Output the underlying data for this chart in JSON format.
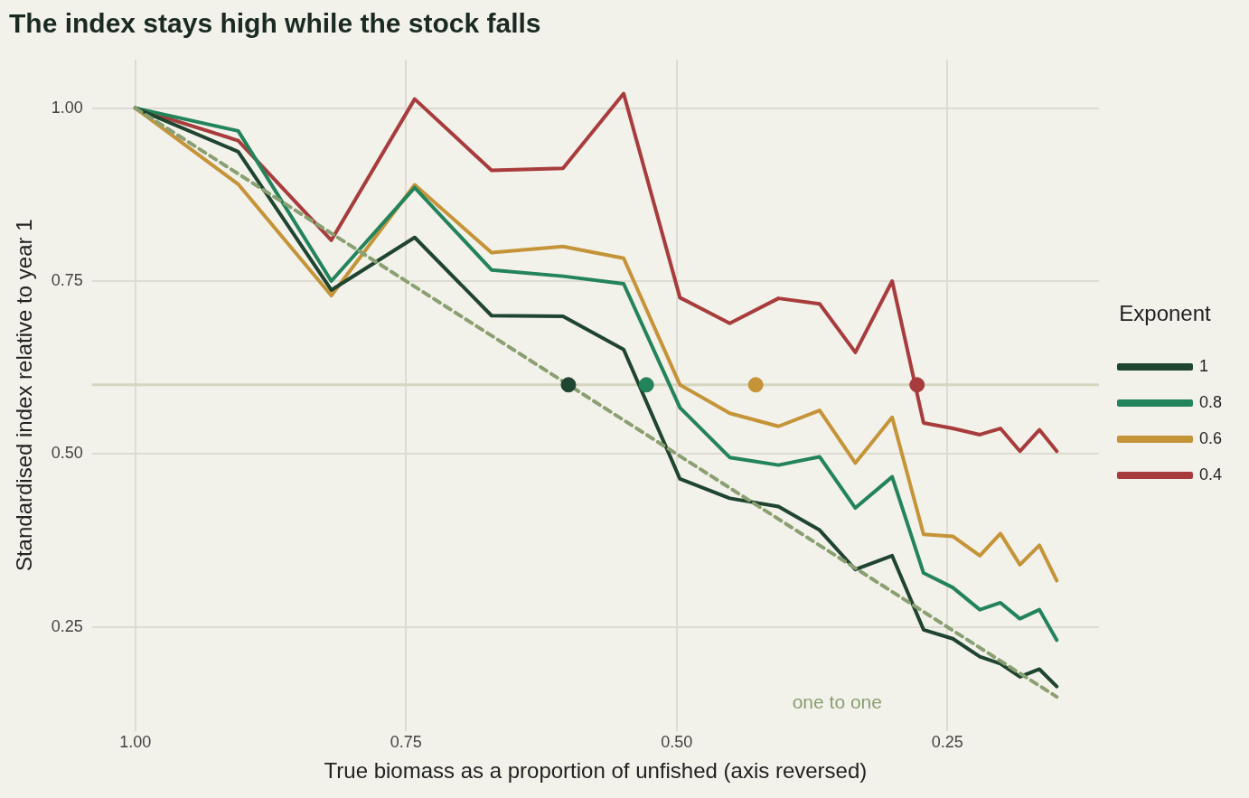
{
  "chart_data": {
    "type": "line",
    "title": "The index stays high while the stock falls",
    "xlabel": "True biomass as a proportion of unfished (axis reversed)",
    "ylabel": "Standardised index relative to year 1",
    "legend_title": "Exponent",
    "legend": "right",
    "grid": true,
    "marker": "none",
    "x": [
      1.0,
      0.905,
      0.819,
      0.742,
      0.671,
      0.605,
      0.549,
      0.497,
      0.451,
      0.406,
      0.368,
      0.335,
      0.301,
      0.272,
      0.245,
      0.22,
      0.201,
      0.183,
      0.165,
      0.149
    ],
    "xlim": [
      1.04,
      0.11
    ],
    "xticks": [
      {
        "value": 1,
        "label": "1.00"
      },
      {
        "value": 0.75,
        "label": "0.75"
      },
      {
        "value": 0.5,
        "label": "0.50"
      },
      {
        "value": 0.25,
        "label": "0.25"
      }
    ],
    "ylim": [
      0.1,
      1.07
    ],
    "yticks": [
      {
        "value": 0.25,
        "label": "0.25"
      },
      {
        "value": 0.5,
        "label": "0.50"
      },
      {
        "value": 0.75,
        "label": "0.75"
      },
      {
        "value": 1,
        "label": "1.00"
      }
    ],
    "ref_lines": [
      {
        "axis": "y",
        "value": 0.6,
        "color": "#d4d6bf"
      }
    ],
    "annotations": [
      "one to one"
    ],
    "series": [
      {
        "type": "line",
        "line_style": "dashed",
        "color": "#8a9f72",
        "x": [
          1.0,
          0.149
        ],
        "values": [
          1.0,
          0.149
        ]
      },
      {
        "name": "1",
        "color": "#1f4430",
        "values": [
          1.0,
          0.937,
          0.737,
          0.813,
          0.7,
          0.699,
          0.651,
          0.464,
          0.436,
          0.424,
          0.39,
          0.333,
          0.353,
          0.246,
          0.233,
          0.207,
          0.197,
          0.178,
          0.189,
          0.164
        ]
      },
      {
        "name": "0.8",
        "color": "#23835a",
        "values": [
          1.0,
          0.967,
          0.75,
          0.885,
          0.766,
          0.757,
          0.746,
          0.567,
          0.495,
          0.484,
          0.496,
          0.422,
          0.467,
          0.328,
          0.307,
          0.275,
          0.285,
          0.262,
          0.275,
          0.231
        ]
      },
      {
        "name": "0.6",
        "color": "#c59438",
        "values": [
          1.0,
          0.89,
          0.729,
          0.889,
          0.791,
          0.8,
          0.783,
          0.6,
          0.559,
          0.54,
          0.563,
          0.487,
          0.553,
          0.384,
          0.381,
          0.353,
          0.385,
          0.34,
          0.368,
          0.317
        ]
      },
      {
        "name": "0.4",
        "color": "#a83c3c",
        "values": [
          1.0,
          0.953,
          0.809,
          1.013,
          0.91,
          0.913,
          1.021,
          0.726,
          0.689,
          0.725,
          0.717,
          0.647,
          0.75,
          0.545,
          0.537,
          0.528,
          0.537,
          0.504,
          0.535,
          0.504
        ]
      },
      {
        "type": "scatter",
        "marker": "circle",
        "color": "#1f4430",
        "x": [
          0.6
        ],
        "values": [
          0.6
        ]
      },
      {
        "type": "scatter",
        "marker": "circle",
        "color": "#23835a",
        "x": [
          0.528
        ],
        "values": [
          0.6
        ]
      },
      {
        "type": "scatter",
        "marker": "circle",
        "color": "#c59438",
        "x": [
          0.427
        ],
        "values": [
          0.6
        ]
      },
      {
        "type": "scatter",
        "marker": "circle",
        "color": "#a83c3c",
        "x": [
          0.278
        ],
        "values": [
          0.6
        ]
      }
    ]
  }
}
